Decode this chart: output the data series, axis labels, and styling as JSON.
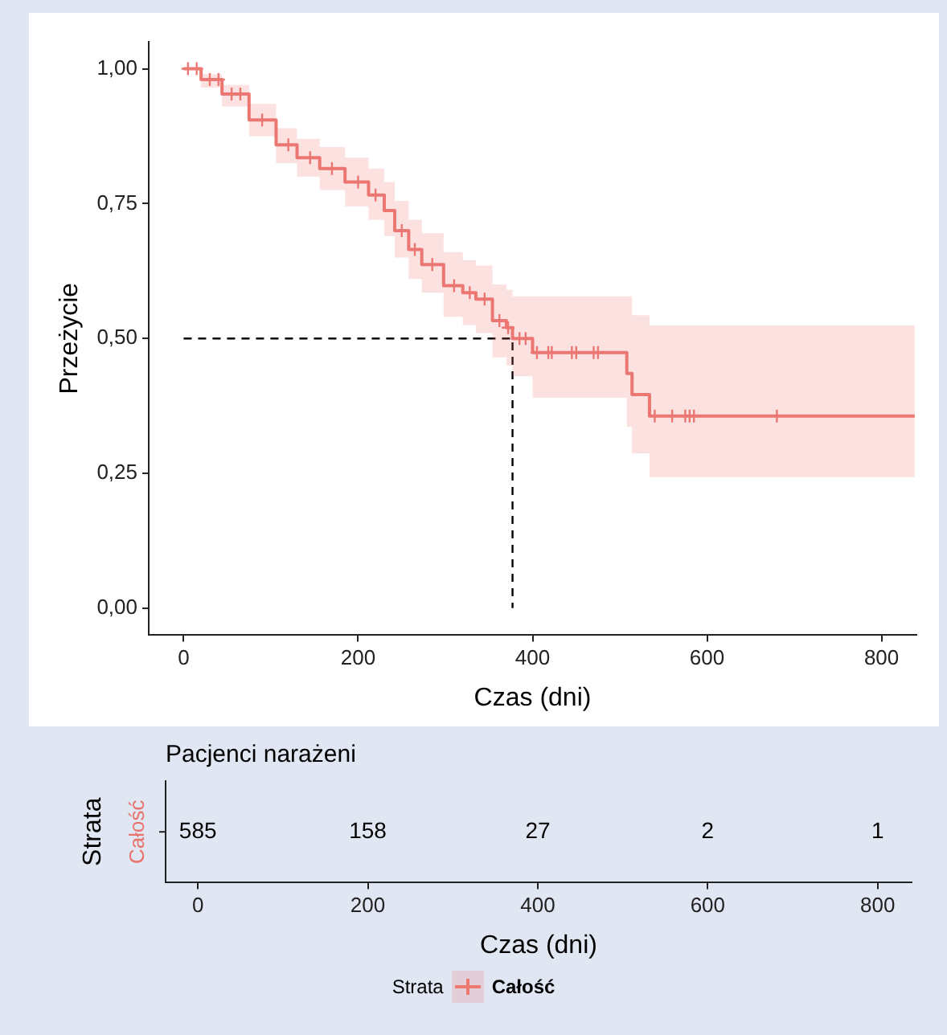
{
  "chart_data": [
    {
      "type": "step",
      "xlabel": "Czas (dni)",
      "ylabel": "Przeżycie",
      "legend_title": "Strata",
      "legend": "bottom",
      "grid": false,
      "xlim": [
        -40,
        840
      ],
      "xticks": [
        0,
        200,
        400,
        600,
        800
      ],
      "ylim": [
        -0.05,
        1.05
      ],
      "yticks": [
        {
          "value": 0,
          "label": "0,00"
        },
        {
          "value": 0.25,
          "label": "0,25"
        },
        {
          "value": 0.5,
          "label": "0,50"
        },
        {
          "value": 0.75,
          "label": "0,75"
        },
        {
          "value": 1,
          "label": "1,00"
        }
      ],
      "series": [
        {
          "name": "Całość",
          "color": "#ec7872",
          "x": [
            0,
            20,
            44,
            75,
            106,
            130,
            156,
            185,
            212,
            230,
            242,
            258,
            273,
            298,
            320,
            335,
            354,
            370,
            377,
            400,
            508,
            514,
            534,
            838
          ],
          "values": [
            1,
            0.98,
            0.953,
            0.905,
            0.859,
            0.835,
            0.815,
            0.79,
            0.766,
            0.737,
            0.7,
            0.665,
            0.637,
            0.598,
            0.585,
            0.573,
            0.533,
            0.52,
            0.5,
            0.474,
            0.435,
            0.396,
            0.356,
            0.356
          ],
          "lower": [
            1,
            0.965,
            0.93,
            0.875,
            0.825,
            0.8,
            0.775,
            0.745,
            0.72,
            0.69,
            0.65,
            0.61,
            0.585,
            0.54,
            0.525,
            0.51,
            0.465,
            0.45,
            0.43,
            0.39,
            0.336,
            0.287,
            0.243,
            0.243
          ],
          "upper": [
            1,
            0.99,
            0.97,
            0.935,
            0.89,
            0.87,
            0.855,
            0.835,
            0.815,
            0.79,
            0.755,
            0.72,
            0.695,
            0.66,
            0.645,
            0.635,
            0.6,
            0.59,
            0.578,
            0.578,
            0.578,
            0.543,
            0.524,
            0.524
          ]
        },
        {
          "type": "scatter",
          "color": "#ec7872",
          "marker": "cross",
          "x": [
            5,
            15,
            30,
            40,
            55,
            65,
            90,
            120,
            145,
            170,
            200,
            220,
            250,
            265,
            285,
            310,
            328,
            345,
            362,
            372,
            385,
            392,
            405,
            418,
            422,
            445,
            450,
            470,
            475,
            540,
            560,
            575,
            580,
            585,
            680
          ],
          "values": [
            1,
            1,
            0.98,
            0.98,
            0.953,
            0.953,
            0.905,
            0.859,
            0.835,
            0.815,
            0.79,
            0.766,
            0.7,
            0.665,
            0.637,
            0.598,
            0.585,
            0.573,
            0.533,
            0.52,
            0.5,
            0.5,
            0.474,
            0.474,
            0.474,
            0.474,
            0.474,
            0.474,
            0.474,
            0.356,
            0.356,
            0.356,
            0.356,
            0.356,
            0.356
          ]
        },
        {
          "type": "line",
          "color": "#000000",
          "line_style": "dashed",
          "x": [
            0,
            377,
            377
          ],
          "values": [
            0.5,
            0.5,
            0
          ]
        }
      ]
    },
    {
      "type": "heatmap",
      "title": "Pacjenci narażeni",
      "xlabel": "Czas (dni)",
      "ylabel": "Strata",
      "data_labels": true,
      "categories": [
        "0",
        "200",
        "400",
        "600",
        "800"
      ],
      "y_categories": [
        "Całość"
      ],
      "cells": [
        [
          585,
          158,
          27,
          2,
          1
        ]
      ]
    }
  ]
}
